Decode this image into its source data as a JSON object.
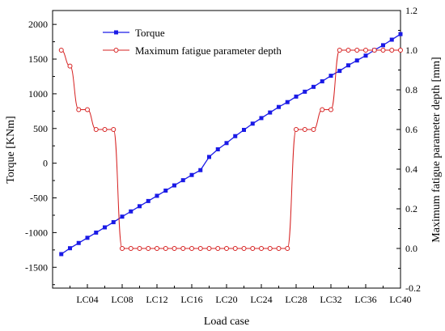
{
  "chart_data": {
    "type": "line",
    "xlabel": "Load case",
    "ylabel_left": "Torque [KNm]",
    "ylabel_right": "Maximum fatigue parameter depth [mm]",
    "x_tick_labels": [
      "LC04",
      "LC08",
      "LC12",
      "LC16",
      "LC20",
      "LC24",
      "LC28",
      "LC32",
      "LC36",
      "LC40"
    ],
    "x_tick_values": [
      4,
      8,
      12,
      16,
      20,
      24,
      28,
      32,
      36,
      40
    ],
    "xlim": [
      0,
      40
    ],
    "ylim_left": [
      -1800,
      2200
    ],
    "y_left_ticks": [
      -1500,
      -1000,
      -500,
      0,
      500,
      1000,
      1500,
      2000
    ],
    "ylim_right": [
      -0.2,
      1.2
    ],
    "y_right_ticks": [
      -0.2,
      0.0,
      0.2,
      0.4,
      0.6,
      0.8,
      1.0,
      1.2
    ],
    "y_right_tick_labels": [
      "-0.2",
      "0.0",
      "0.2",
      "0.4",
      "0.6",
      "0.8",
      "1.0",
      "1.2"
    ],
    "grid": false,
    "legend": "top-left",
    "series": [
      {
        "name": "Torque",
        "axis": "left",
        "color": "#1a1ae6",
        "marker": "square",
        "x": [
          1,
          2,
          3,
          4,
          5,
          6,
          7,
          8,
          9,
          10,
          11,
          12,
          13,
          14,
          15,
          16,
          17,
          18,
          19,
          20,
          21,
          22,
          23,
          24,
          25,
          26,
          27,
          28,
          29,
          30,
          31,
          32,
          33,
          34,
          35,
          36,
          37,
          38,
          39,
          40
        ],
        "y": [
          -1310,
          -1225,
          -1150,
          -1075,
          -1000,
          -925,
          -850,
          -770,
          -695,
          -620,
          -545,
          -470,
          -395,
          -320,
          -245,
          -170,
          -100,
          90,
          200,
          290,
          390,
          480,
          570,
          650,
          730,
          810,
          880,
          960,
          1030,
          1100,
          1180,
          1260,
          1330,
          1410,
          1480,
          1550,
          1630,
          1700,
          1780,
          1860
        ]
      },
      {
        "name": "Maximum fatigue parameter depth",
        "axis": "right",
        "color": "#d62020",
        "marker": "circle-open",
        "x": [
          1,
          2,
          3,
          4,
          5,
          6,
          7,
          8,
          9,
          10,
          11,
          12,
          13,
          14,
          15,
          16,
          17,
          18,
          19,
          20,
          21,
          22,
          23,
          24,
          25,
          26,
          27,
          28,
          29,
          30,
          31,
          32,
          33,
          34,
          35,
          36,
          37,
          38,
          39,
          40
        ],
        "y": [
          1.0,
          0.92,
          0.7,
          0.7,
          0.6,
          0.6,
          0.6,
          0.0,
          0.0,
          0.0,
          0.0,
          0.0,
          0.0,
          0.0,
          0.0,
          0.0,
          0.0,
          0.0,
          0.0,
          0.0,
          0.0,
          0.0,
          0.0,
          0.0,
          0.0,
          0.0,
          0.0,
          0.6,
          0.6,
          0.6,
          0.7,
          0.7,
          1.0,
          1.0,
          1.0,
          1.0,
          1.0,
          1.0,
          1.0,
          1.0
        ]
      }
    ]
  }
}
